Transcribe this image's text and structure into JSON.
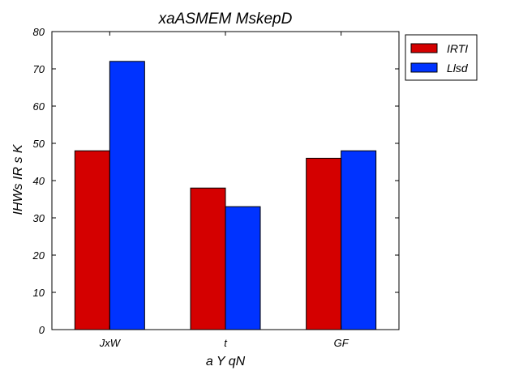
{
  "chart_data": {
    "type": "bar",
    "title": "xaASMEM MskepD",
    "xlabel": "a Y qN",
    "ylabel": "IHWs IR s K",
    "categories": [
      "JxW",
      "t",
      "GF"
    ],
    "series": [
      {
        "name": "IRTI",
        "values": [
          48,
          38,
          46
        ],
        "color": "#d40000"
      },
      {
        "name": "Llsd",
        "values": [
          72,
          33,
          48
        ],
        "color": "#0033ff"
      }
    ],
    "ylim": [
      0,
      80
    ],
    "yticks": [
      0,
      10,
      20,
      30,
      40,
      50,
      60,
      70,
      80
    ],
    "grid": false,
    "legend_position": "outside-top-right"
  }
}
